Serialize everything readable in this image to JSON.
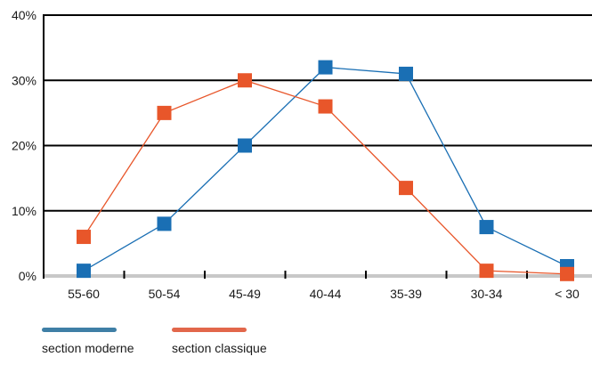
{
  "chart_data": {
    "type": "line",
    "categories": [
      "55-60",
      "50-54",
      "45-49",
      "40-44",
      "35-39",
      "30-34",
      "< 30"
    ],
    "y_ticks": [
      "0%",
      "10%",
      "20%",
      "30%",
      "40%"
    ],
    "ylim": [
      0,
      40
    ],
    "y_unit": "%",
    "grid": true,
    "legend_position": "bottom-left",
    "series": [
      {
        "name": "section moderne",
        "color": "#1a6fb4",
        "legend_color": "#3f7fa6",
        "values": [
          0.8,
          8,
          20,
          32,
          31,
          7.5,
          1.5
        ]
      },
      {
        "name": "section classique",
        "color": "#e8562a",
        "legend_color": "#e2674b",
        "values": [
          6,
          25,
          30,
          26,
          13.5,
          0.8,
          0.3
        ]
      }
    ]
  }
}
